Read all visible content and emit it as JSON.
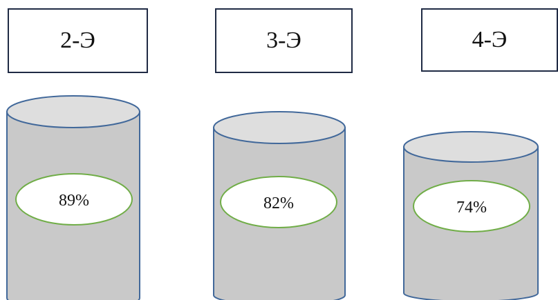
{
  "groups": [
    {
      "label": "2-Э",
      "value": "89%",
      "value_pct": 89
    },
    {
      "label": "3-Э",
      "value": "82%",
      "value_pct": 82
    },
    {
      "label": "4-Э",
      "value": "74%",
      "value_pct": 74
    }
  ],
  "colors": {
    "box_border": "#1f2a44",
    "cylinder_fill": "#c9c9c9",
    "cylinder_top": "#dedede",
    "cylinder_outline": "#41689a",
    "badge_outline": "#70ad47"
  }
}
